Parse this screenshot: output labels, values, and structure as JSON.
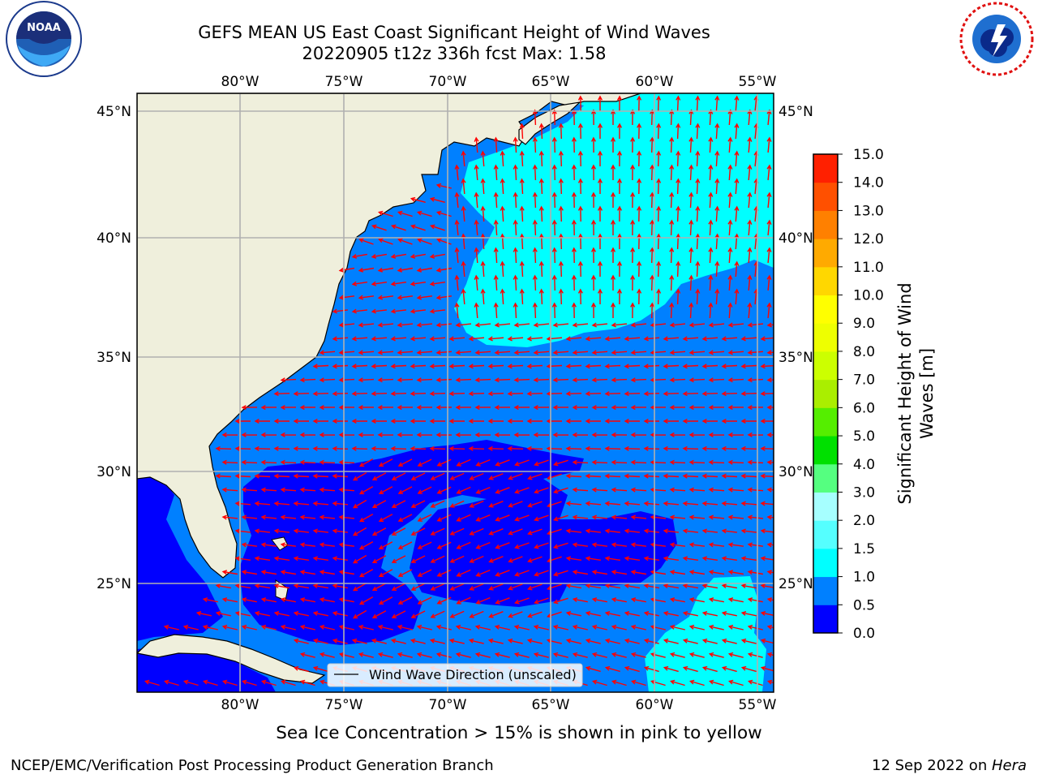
{
  "title_line1": "GEFS MEAN US East Coast Significant Height of Wind Waves",
  "title_line2": "20220905 t12z 336h fcst   Max: 1.58",
  "lon_labels": [
    "80°W",
    "75°W",
    "70°W",
    "65°W",
    "60°W",
    "55°W"
  ],
  "lat_labels": [
    "45°N",
    "40°N",
    "35°N",
    "30°N",
    "25°N"
  ],
  "legend_label": "Wind Wave Direction (unscaled)",
  "colorbar": {
    "label_line1": "Significant Height of Wind",
    "label_line2": "Waves [m]",
    "ticks": [
      "15.0",
      "14.0",
      "13.0",
      "12.0",
      "11.0",
      "10.0",
      "9.0",
      "8.0",
      "7.0",
      "6.0",
      "5.0",
      "4.0",
      "3.0",
      "2.0",
      "1.5",
      "1.0",
      "0.5",
      "0.0"
    ],
    "colors_bottom_to_top": [
      "#0000ff",
      "#0080ff",
      "#00ffff",
      "#55ffff",
      "#a6ffff",
      "#55ff80",
      "#00e000",
      "#55ee00",
      "#aaee00",
      "#ccff00",
      "#eeff00",
      "#ffff00",
      "#ffd700",
      "#ffaa00",
      "#ff8000",
      "#ff5000",
      "#ff2000"
    ]
  },
  "sea_ice_note": "Sea Ice Concentration > 15% is shown in pink to yellow",
  "footer_left": "NCEP/EMC/Verification Post Processing Product Generation Branch",
  "footer_right_date": "12 Sep 2022 on ",
  "footer_right_host": "Hera",
  "logo_left_text": "NOAA",
  "colors": {
    "land": "#efefdc",
    "ocean_0_0_5": "#0000ff",
    "ocean_0_5_1_0": "#0080ff",
    "ocean_1_0_1_5": "#00ffff",
    "arrow": "#ff0000",
    "grid": "#b0b0b0"
  }
}
